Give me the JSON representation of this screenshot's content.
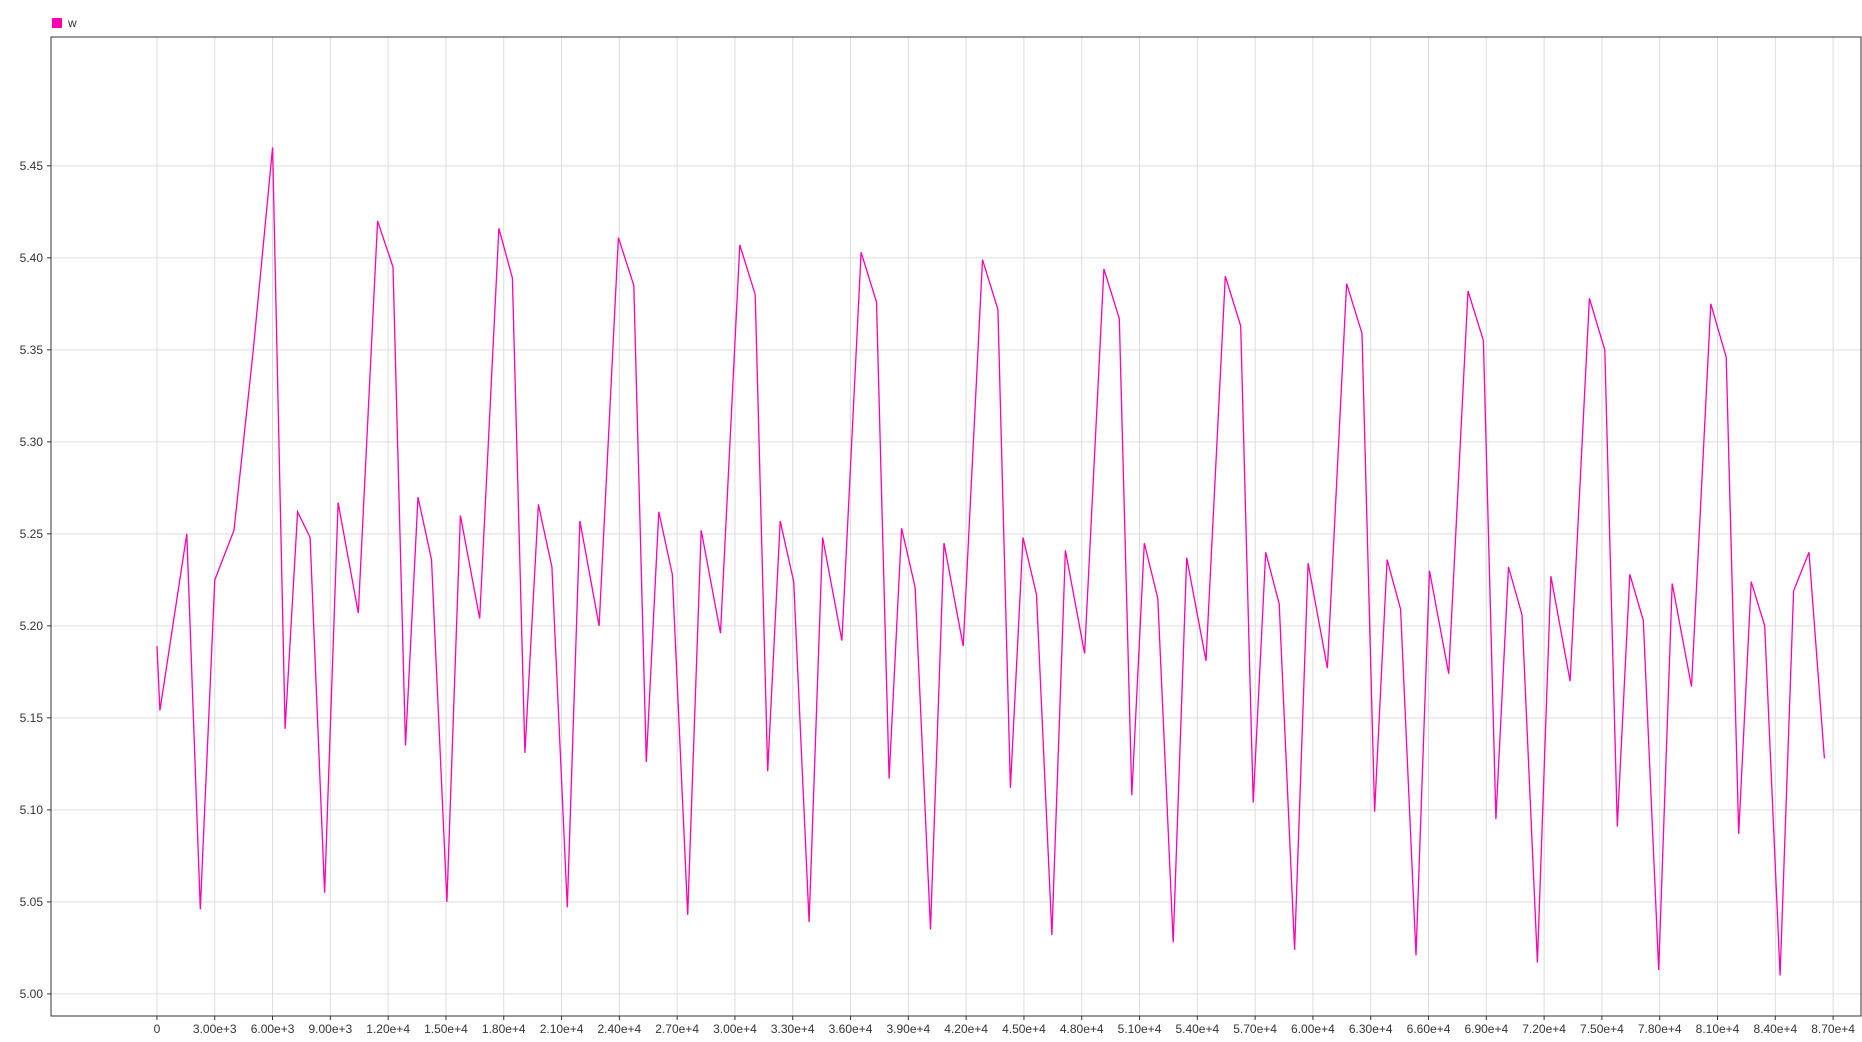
{
  "legend": {
    "label": "w"
  },
  "colors": {
    "series": "#ff00b4",
    "grid": "#dddddd",
    "axis": "#333333",
    "text": "#333333"
  },
  "chart_data": {
    "type": "line",
    "title": "",
    "xlabel": "",
    "ylabel": "",
    "grid": true,
    "legend_position": "top-left",
    "xlim": [
      -5500,
      88500
    ],
    "ylim": [
      4.988,
      5.52
    ],
    "x_ticks": [
      {
        "value": 0,
        "label": "0"
      },
      {
        "value": 3000,
        "label": "3.00e+3"
      },
      {
        "value": 6000,
        "label": "6.00e+3"
      },
      {
        "value": 9000,
        "label": "9.00e+3"
      },
      {
        "value": 12000,
        "label": "1.20e+4"
      },
      {
        "value": 15000,
        "label": "1.50e+4"
      },
      {
        "value": 18000,
        "label": "1.80e+4"
      },
      {
        "value": 21000,
        "label": "2.10e+4"
      },
      {
        "value": 24000,
        "label": "2.40e+4"
      },
      {
        "value": 27000,
        "label": "2.70e+4"
      },
      {
        "value": 30000,
        "label": "3.00e+4"
      },
      {
        "value": 33000,
        "label": "3.30e+4"
      },
      {
        "value": 36000,
        "label": "3.60e+4"
      },
      {
        "value": 39000,
        "label": "3.90e+4"
      },
      {
        "value": 42000,
        "label": "4.20e+4"
      },
      {
        "value": 45000,
        "label": "4.50e+4"
      },
      {
        "value": 48000,
        "label": "4.80e+4"
      },
      {
        "value": 51000,
        "label": "5.10e+4"
      },
      {
        "value": 54000,
        "label": "5.40e+4"
      },
      {
        "value": 57000,
        "label": "5.70e+4"
      },
      {
        "value": 60000,
        "label": "6.00e+4"
      },
      {
        "value": 63000,
        "label": "6.30e+4"
      },
      {
        "value": 66000,
        "label": "6.60e+4"
      },
      {
        "value": 69000,
        "label": "6.90e+4"
      },
      {
        "value": 72000,
        "label": "7.20e+4"
      },
      {
        "value": 75000,
        "label": "7.50e+4"
      },
      {
        "value": 78000,
        "label": "7.80e+4"
      },
      {
        "value": 81000,
        "label": "8.10e+4"
      },
      {
        "value": 84000,
        "label": "8.40e+4"
      },
      {
        "value": 87000,
        "label": "8.70e+4"
      }
    ],
    "y_ticks": [
      {
        "value": 5.0,
        "label": "5.00"
      },
      {
        "value": 5.05,
        "label": "5.05"
      },
      {
        "value": 5.1,
        "label": "5.10"
      },
      {
        "value": 5.15,
        "label": "5.15"
      },
      {
        "value": 5.2,
        "label": "5.20"
      },
      {
        "value": 5.25,
        "label": "5.25"
      },
      {
        "value": 5.3,
        "label": "5.30"
      },
      {
        "value": 5.35,
        "label": "5.35"
      },
      {
        "value": 5.4,
        "label": "5.40"
      },
      {
        "value": 5.45,
        "label": "5.45"
      }
    ],
    "series": [
      {
        "name": "w",
        "color": "#ff00b4",
        "x": [
          0,
          150,
          1550,
          2250,
          3000,
          4000,
          5000,
          6000,
          6650,
          7300,
          7950,
          8700,
          9400,
          10450,
          11450,
          12250,
          12900,
          13550,
          14250,
          15050,
          15750,
          16750,
          17750,
          18450,
          19100,
          19800,
          20500,
          21300,
          21950,
          22950,
          23950,
          24750,
          25400,
          26050,
          26750,
          27550,
          28250,
          29250,
          30250,
          31050,
          31700,
          32350,
          33050,
          33850,
          34550,
          35550,
          36550,
          37350,
          38000,
          38650,
          39350,
          40150,
          40850,
          41850,
          42850,
          43650,
          44300,
          44950,
          45650,
          46450,
          47150,
          48150,
          49150,
          49950,
          50600,
          51250,
          51950,
          52750,
          53450,
          54450,
          55450,
          56250,
          56900,
          57550,
          58250,
          59050,
          59750,
          60750,
          61750,
          62550,
          63200,
          63850,
          64550,
          65350,
          66050,
          67050,
          68050,
          68850,
          69500,
          70150,
          70850,
          71650,
          72350,
          73350,
          74350,
          75150,
          75800,
          76450,
          77150,
          77950,
          78650,
          79650,
          80650,
          81450,
          82100,
          82750,
          83450,
          84250,
          84950,
          85750,
          86550
        ],
        "y": [
          5.189,
          5.154,
          5.25,
          5.046,
          5.225,
          5.252,
          5.35,
          5.46,
          5.144,
          5.262,
          5.248,
          5.055,
          5.267,
          5.207,
          5.42,
          5.395,
          5.135,
          5.27,
          5.236,
          5.05,
          5.26,
          5.204,
          5.416,
          5.389,
          5.131,
          5.266,
          5.232,
          5.047,
          5.257,
          5.2,
          5.411,
          5.385,
          5.126,
          5.262,
          5.228,
          5.043,
          5.252,
          5.196,
          5.407,
          5.38,
          5.121,
          5.257,
          5.224,
          5.039,
          5.248,
          5.192,
          5.403,
          5.376,
          5.117,
          5.253,
          5.221,
          5.035,
          5.245,
          5.189,
          5.399,
          5.372,
          5.112,
          5.248,
          5.217,
          5.032,
          5.241,
          5.185,
          5.394,
          5.367,
          5.108,
          5.245,
          5.215,
          5.028,
          5.237,
          5.181,
          5.39,
          5.363,
          5.104,
          5.24,
          5.212,
          5.024,
          5.234,
          5.177,
          5.386,
          5.359,
          5.099,
          5.236,
          5.209,
          5.021,
          5.23,
          5.174,
          5.382,
          5.355,
          5.095,
          5.232,
          5.206,
          5.017,
          5.227,
          5.17,
          5.378,
          5.35,
          5.091,
          5.228,
          5.203,
          5.013,
          5.223,
          5.167,
          5.375,
          5.346,
          5.087,
          5.224,
          5.2,
          5.01,
          5.219,
          5.24,
          5.128
        ]
      }
    ]
  }
}
